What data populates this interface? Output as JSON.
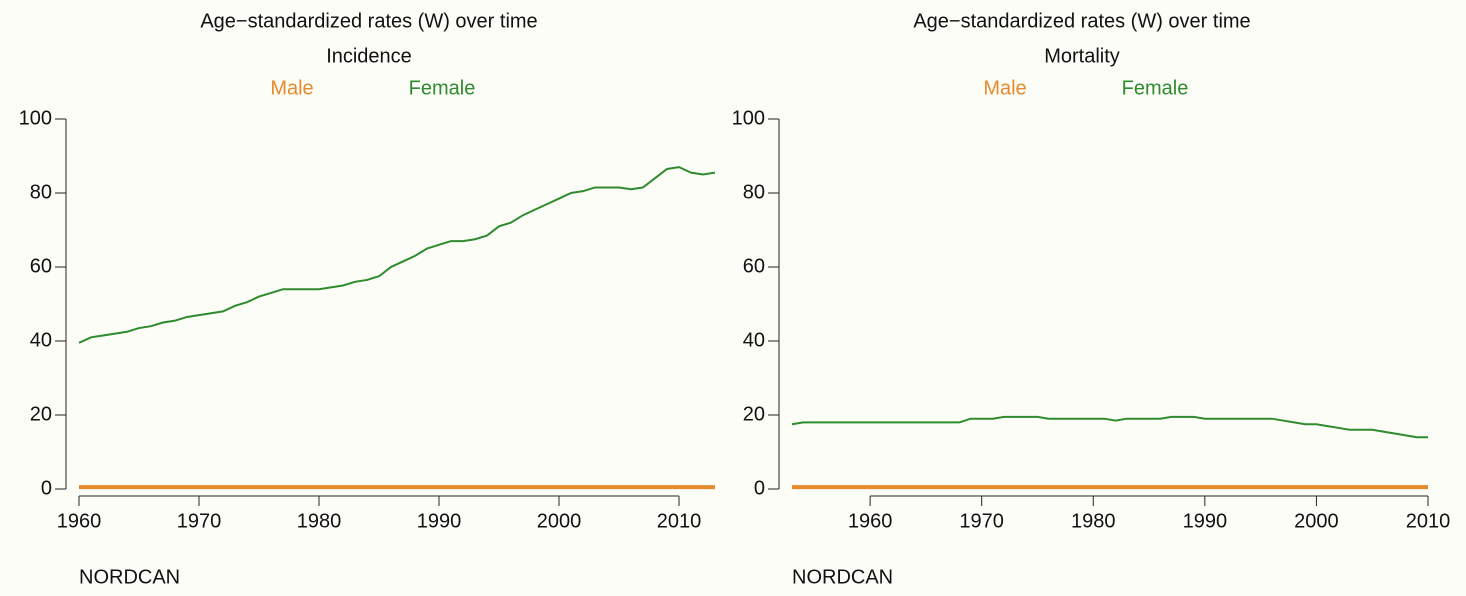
{
  "chart_data": [
    {
      "type": "line",
      "title": "Age−standardized rates (W) over time",
      "subtitle": "Incidence",
      "source": "NORDCAN",
      "x": [
        1960,
        1961,
        1962,
        1963,
        1964,
        1965,
        1966,
        1967,
        1968,
        1969,
        1970,
        1971,
        1972,
        1973,
        1974,
        1975,
        1976,
        1977,
        1978,
        1979,
        1980,
        1981,
        1982,
        1983,
        1984,
        1985,
        1986,
        1987,
        1988,
        1989,
        1990,
        1991,
        1992,
        1993,
        1994,
        1995,
        1996,
        1997,
        1998,
        1999,
        2000,
        2001,
        2002,
        2003,
        2004,
        2005,
        2006,
        2007,
        2008,
        2009,
        2010,
        2011,
        2012,
        2013
      ],
      "series": [
        {
          "name": "Male",
          "color": "#e8892b",
          "values": [
            0.5,
            0.5,
            0.5,
            0.5,
            0.5,
            0.5,
            0.5,
            0.5,
            0.5,
            0.5,
            0.5,
            0.5,
            0.5,
            0.5,
            0.5,
            0.5,
            0.5,
            0.5,
            0.5,
            0.5,
            0.5,
            0.5,
            0.5,
            0.5,
            0.5,
            0.5,
            0.5,
            0.5,
            0.5,
            0.5,
            0.5,
            0.5,
            0.5,
            0.5,
            0.5,
            0.5,
            0.5,
            0.5,
            0.5,
            0.5,
            0.5,
            0.5,
            0.5,
            0.5,
            0.5,
            0.5,
            0.5,
            0.5,
            0.5,
            0.5,
            0.5,
            0.5,
            0.5,
            0.5
          ]
        },
        {
          "name": "Female",
          "color": "#2e8b2e",
          "values": [
            39.5,
            41,
            41.5,
            42,
            42.5,
            43.5,
            44,
            45,
            45.5,
            46.5,
            47,
            47.5,
            48,
            49.5,
            50.5,
            52,
            53,
            54,
            54,
            54,
            54,
            54.5,
            55,
            56,
            56.5,
            57.5,
            60,
            61.5,
            63,
            65,
            66,
            67,
            67,
            67.5,
            68.5,
            71,
            72,
            74,
            75.5,
            77,
            78.5,
            80,
            80.5,
            81.5,
            81.5,
            81.5,
            81,
            81.5,
            84,
            86.5,
            87,
            85.5,
            85,
            85.5
          ]
        }
      ],
      "xlim": [
        1960,
        2013
      ],
      "ylim": [
        0,
        100
      ],
      "xticks": [
        1960,
        1970,
        1980,
        1990,
        2000,
        2010
      ],
      "yticks": [
        0,
        20,
        40,
        60,
        80,
        100
      ]
    },
    {
      "type": "line",
      "title": "Age−standardized rates (W) over time",
      "subtitle": "Mortality",
      "source": "NORDCAN",
      "x": [
        1953,
        1954,
        1955,
        1956,
        1957,
        1958,
        1959,
        1960,
        1961,
        1962,
        1963,
        1964,
        1965,
        1966,
        1967,
        1968,
        1969,
        1970,
        1971,
        1972,
        1973,
        1974,
        1975,
        1976,
        1977,
        1978,
        1979,
        1980,
        1981,
        1982,
        1983,
        1984,
        1985,
        1986,
        1987,
        1988,
        1989,
        1990,
        1991,
        1992,
        1993,
        1994,
        1995,
        1996,
        1997,
        1998,
        1999,
        2000,
        2001,
        2002,
        2003,
        2004,
        2005,
        2006,
        2007,
        2008,
        2009,
        2010
      ],
      "series": [
        {
          "name": "Male",
          "color": "#e8892b",
          "values": [
            0.5,
            0.5,
            0.5,
            0.5,
            0.5,
            0.5,
            0.5,
            0.5,
            0.5,
            0.5,
            0.5,
            0.5,
            0.5,
            0.5,
            0.5,
            0.5,
            0.5,
            0.5,
            0.5,
            0.5,
            0.5,
            0.5,
            0.5,
            0.5,
            0.5,
            0.5,
            0.5,
            0.5,
            0.5,
            0.5,
            0.5,
            0.5,
            0.5,
            0.5,
            0.5,
            0.5,
            0.5,
            0.5,
            0.5,
            0.5,
            0.5,
            0.5,
            0.5,
            0.5,
            0.5,
            0.5,
            0.5,
            0.5,
            0.5,
            0.5,
            0.5,
            0.5,
            0.5,
            0.5,
            0.5,
            0.5,
            0.5,
            0.5
          ]
        },
        {
          "name": "Female",
          "color": "#2e8b2e",
          "values": [
            17.5,
            18,
            18,
            18,
            18,
            18,
            18,
            18,
            18,
            18,
            18,
            18,
            18,
            18,
            18,
            18,
            19,
            19,
            19,
            19.5,
            19.5,
            19.5,
            19.5,
            19,
            19,
            19,
            19,
            19,
            19,
            18.5,
            19,
            19,
            19,
            19,
            19.5,
            19.5,
            19.5,
            19,
            19,
            19,
            19,
            19,
            19,
            19,
            18.5,
            18,
            17.5,
            17.5,
            17,
            16.5,
            16,
            16,
            16,
            15.5,
            15,
            14.5,
            14,
            14
          ]
        }
      ],
      "xlim": [
        1953,
        2010
      ],
      "ylim": [
        0,
        100
      ],
      "xticks": [
        1960,
        1970,
        1980,
        1990,
        2000,
        2010
      ],
      "yticks": [
        0,
        20,
        40,
        60,
        80,
        100
      ]
    }
  ]
}
